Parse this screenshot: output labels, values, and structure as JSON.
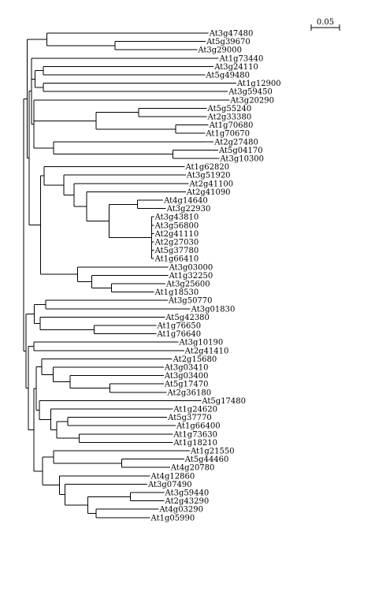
{
  "scale_bar": {
    "label": "0.05",
    "length": 0.05
  },
  "tree": {
    "name": "root",
    "length": 0,
    "children": [
      {
        "length": 0.006,
        "children": [
          {
            "length": 0.035,
            "children": [
              {
                "leaf": "At3g47480",
                "length": 0.285
              },
              {
                "length": 0.12,
                "children": [
                  {
                    "leaf": "At5g39670",
                    "length": 0.16
                  },
                  {
                    "leaf": "At3g29000",
                    "length": 0.145
                  }
                ]
              }
            ]
          },
          {
            "length": 0.004,
            "children": [
              {
                "length": 0.004,
                "children": [
                  {
                    "leaf": "At1g73440",
                    "length": 0.33
                  },
                  {
                    "length": 0.006,
                    "children": [
                      {
                        "length": 0.015,
                        "children": [
                          {
                            "leaf": "At3g24110",
                            "length": 0.3
                          },
                          {
                            "leaf": "At5g49480",
                            "length": 0.285
                          }
                        ]
                      },
                      {
                        "length": 0.015,
                        "children": [
                          {
                            "leaf": "At1g12900",
                            "length": 0.34
                          },
                          {
                            "leaf": "At3g59450",
                            "length": 0.325
                          }
                        ]
                      }
                    ]
                  },
                  {
                    "length": 0.004,
                    "children": [
                      {
                        "leaf": "At3g20290",
                        "length": 0.345
                      },
                      {
                        "length": 0.11,
                        "children": [
                          {
                            "length": 0.075,
                            "children": [
                              {
                                "leaf": "At5g55240",
                                "length": 0.12
                              },
                              {
                                "leaf": "At2g33380",
                                "length": 0.12
                              }
                            ]
                          },
                          {
                            "length": 0.14,
                            "children": [
                              {
                                "leaf": "At1g70680",
                                "length": 0.058
                              },
                              {
                                "leaf": "At1g70670",
                                "length": 0.052
                              }
                            ]
                          }
                        ]
                      },
                      {
                        "length": 0.035,
                        "children": [
                          {
                            "leaf": "At2g27480",
                            "length": 0.282
                          },
                          {
                            "length": 0.21,
                            "children": [
                              {
                                "leaf": "At5g04170",
                                "length": 0.08
                              },
                              {
                                "leaf": "At3g10300",
                                "length": 0.082
                              }
                            ]
                          }
                        ]
                      }
                    ]
                  }
                ]
              },
              {
                "length": 0.02,
                "children": [
                  {
                    "length": 0.006,
                    "children": [
                      {
                        "leaf": "At1g62820",
                        "length": 0.248
                      },
                      {
                        "length": 0.035,
                        "children": [
                          {
                            "leaf": "At3g51920",
                            "length": 0.215
                          },
                          {
                            "length": 0.018,
                            "children": [
                              {
                                "leaf": "At2g41100",
                                "length": 0.202
                              },
                              {
                                "length": 0.022,
                                "children": [
                                  {
                                    "leaf": "At2g41090",
                                    "length": 0.175
                                  },
                                  {
                                    "length": 0.04,
                                    "children": [
                                      {
                                        "length": 0.05,
                                        "children": [
                                          {
                                            "leaf": "At4g14640",
                                            "length": 0.045
                                          },
                                          {
                                            "leaf": "At3g22930",
                                            "length": 0.05
                                          }
                                        ]
                                      },
                                      {
                                        "length": 0.075,
                                        "children": [
                                          {
                                            "leaf": "At3g43810",
                                            "length": 0.004
                                          },
                                          {
                                            "leaf": "At3g56800",
                                            "length": 0.004
                                          },
                                          {
                                            "leaf": "At2g41110",
                                            "length": 0.004
                                          },
                                          {
                                            "leaf": "At2g27030",
                                            "length": 0.004
                                          },
                                          {
                                            "leaf": "At5g37780",
                                            "length": 0.004
                                          },
                                          {
                                            "leaf": "At1g66410",
                                            "length": 0.004
                                          }
                                        ]
                                      }
                                    ]
                                  }
                                ]
                              }
                            ]
                          }
                        ]
                      }
                    ]
                  },
                  {
                    "length": 0.065,
                    "children": [
                      {
                        "leaf": "At3g03000",
                        "length": 0.16
                      },
                      {
                        "length": 0.025,
                        "children": [
                          {
                            "leaf": "At1g32250",
                            "length": 0.135
                          },
                          {
                            "length": 0.035,
                            "children": [
                              {
                                "leaf": "At3g25600",
                                "length": 0.095
                              },
                              {
                                "leaf": "At1g18530",
                                "length": 0.075
                              }
                            ]
                          }
                        ]
                      }
                    ]
                  }
                ]
              }
            ]
          }
        ]
      },
      {
        "length": 0.004,
        "children": [
          {
            "length": 0.015,
            "children": [
              {
                "length": 0.02,
                "children": [
                  {
                    "leaf": "At3g50770",
                    "length": 0.215
                  },
                  {
                    "leaf": "At3g01830",
                    "length": 0.255
                  }
                ]
              },
              {
                "length": 0.01,
                "children": [
                  {
                    "leaf": "At5g42380",
                    "length": 0.22
                  },
                  {
                    "length": 0.095,
                    "children": [
                      {
                        "leaf": "At1g76650",
                        "length": 0.11
                      },
                      {
                        "leaf": "At1g76640",
                        "length": 0.11
                      }
                    ]
                  }
                ]
              }
            ]
          },
          {
            "length": 0.004,
            "children": [
              {
                "length": 0.01,
                "children": [
                  {
                    "leaf": "At3g10190",
                    "length": 0.255
                  },
                  {
                    "leaf": "At2g41410",
                    "length": 0.265
                  }
                ]
              },
              {
                "length": 0.01,
                "children": [
                  {
                    "length": 0.004,
                    "children": [
                      {
                        "length": 0.01,
                        "children": [
                          {
                            "leaf": "At2g15680",
                            "length": 0.23
                          },
                          {
                            "length": 0.02,
                            "children": [
                              {
                                "leaf": "At3g03410",
                                "length": 0.195
                              },
                              {
                                "length": 0.03,
                                "children": [
                                  {
                                    "leaf": "At3g03400",
                                    "length": 0.165
                                  },
                                  {
                                    "length": 0.07,
                                    "children": [
                                      {
                                        "leaf": "At5g17470",
                                        "length": 0.095
                                      },
                                      {
                                        "leaf": "At2g36180",
                                        "length": 0.1
                                      }
                                    ]
                                  }
                                ]
                              }
                            ]
                          }
                        ]
                      },
                      {
                        "length": 0.006,
                        "children": [
                          {
                            "leaf": "At5g17480",
                            "length": 0.285
                          },
                          {
                            "length": 0.02,
                            "children": [
                              {
                                "leaf": "At1g24620",
                                "length": 0.215
                              },
                              {
                                "length": 0.01,
                                "children": [
                                  {
                                    "length": 0.02,
                                    "children": [
                                      {
                                        "leaf": "At5g37770",
                                        "length": 0.175
                                      },
                                      {
                                        "leaf": "At1g66400",
                                        "length": 0.19
                                      }
                                    ]
                                  },
                                  {
                                    "length": 0.04,
                                    "children": [
                                      {
                                        "leaf": "At1g73630",
                                        "length": 0.165
                                      },
                                      {
                                        "leaf": "At1g18210",
                                        "length": 0.165
                                      }
                                    ]
                                  }
                                ]
                              }
                            ]
                          }
                        ]
                      }
                    ]
                  },
                  {
                    "length": 0.015,
                    "children": [
                      {
                        "length": 0.02,
                        "children": [
                          {
                            "leaf": "At1g21550",
                            "length": 0.24
                          },
                          {
                            "length": 0.12,
                            "children": [
                              {
                                "leaf": "At5g44460",
                                "length": 0.11
                              },
                              {
                                "leaf": "At4g20780",
                                "length": 0.085
                              }
                            ]
                          }
                        ]
                      },
                      {
                        "length": 0.03,
                        "children": [
                          {
                            "leaf": "At4g12860",
                            "length": 0.16
                          },
                          {
                            "length": 0.01,
                            "children": [
                              {
                                "leaf": "At3g07490",
                                "length": 0.145
                              },
                              {
                                "length": 0.04,
                                "children": [
                                  {
                                    "length": 0.075,
                                    "children": [
                                      {
                                        "leaf": "At3g59440",
                                        "length": 0.06
                                      },
                                      {
                                        "leaf": "At2g43290",
                                        "length": 0.06
                                      }
                                    ]
                                  },
                                  {
                                    "length": 0.015,
                                    "children": [
                                      {
                                        "leaf": "At4g03290",
                                        "length": 0.11
                                      },
                                      {
                                        "leaf": "At1g05990",
                                        "length": 0.095
                                      }
                                    ]
                                  }
                                ]
                              }
                            ]
                          }
                        ]
                      }
                    ]
                  }
                ]
              }
            ]
          }
        ]
      }
    ]
  }
}
